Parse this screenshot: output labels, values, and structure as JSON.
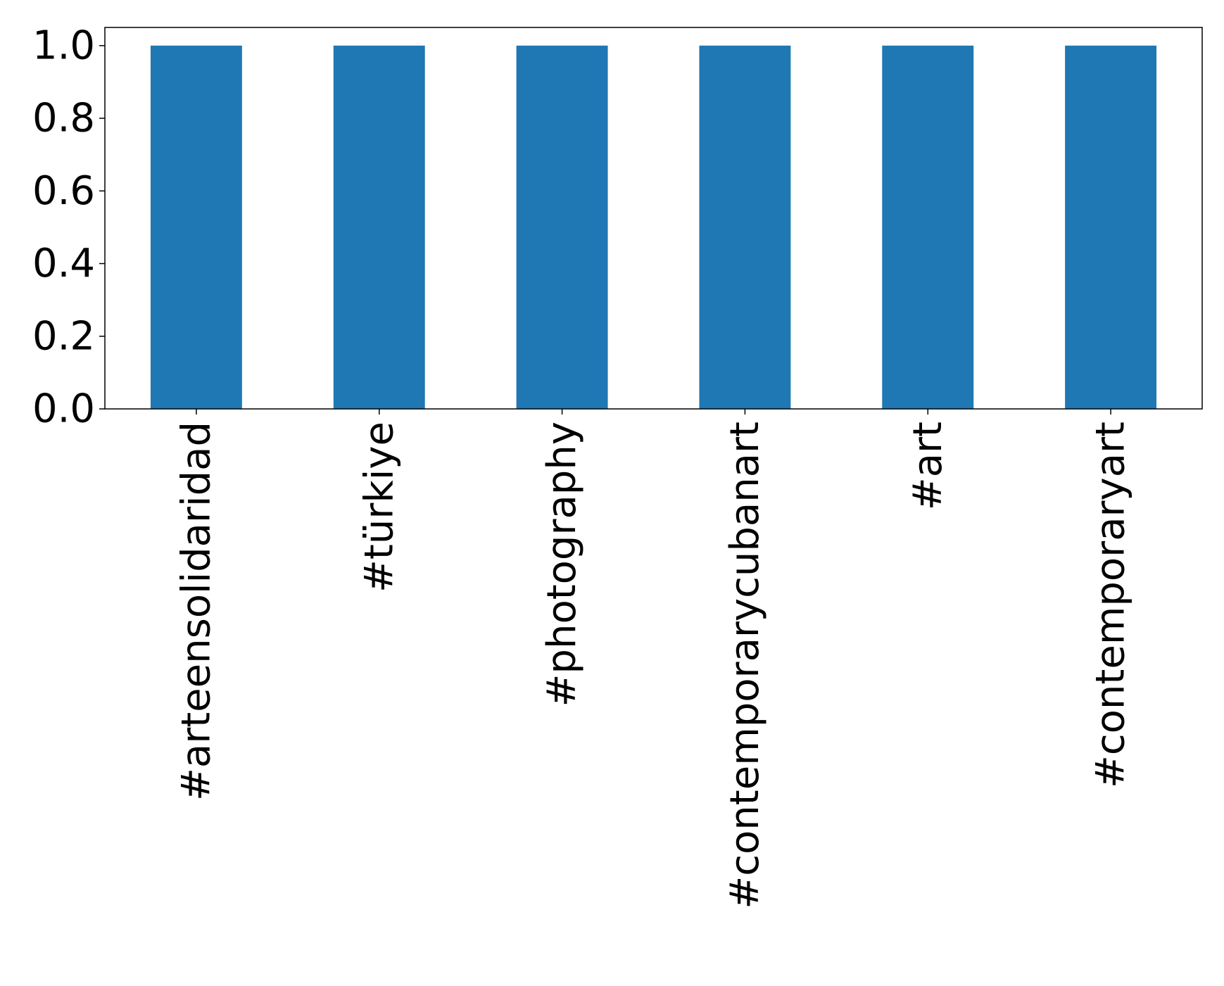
{
  "chart_data": {
    "type": "bar",
    "categories": [
      "#arteensolidaridad",
      "#türkiye",
      "#photography",
      "#contemporarycubanart",
      "#art",
      "#contemporaryart"
    ],
    "values": [
      1,
      1,
      1,
      1,
      1,
      1
    ],
    "color": "#1f77b4",
    "ylim": [
      0,
      1.05
    ],
    "yticks": [
      {
        "value": 0,
        "label": "0.0"
      },
      0.2,
      0.4,
      0.6,
      0.8,
      {
        "value": 1,
        "label": "1.0"
      }
    ],
    "grid": false
  }
}
